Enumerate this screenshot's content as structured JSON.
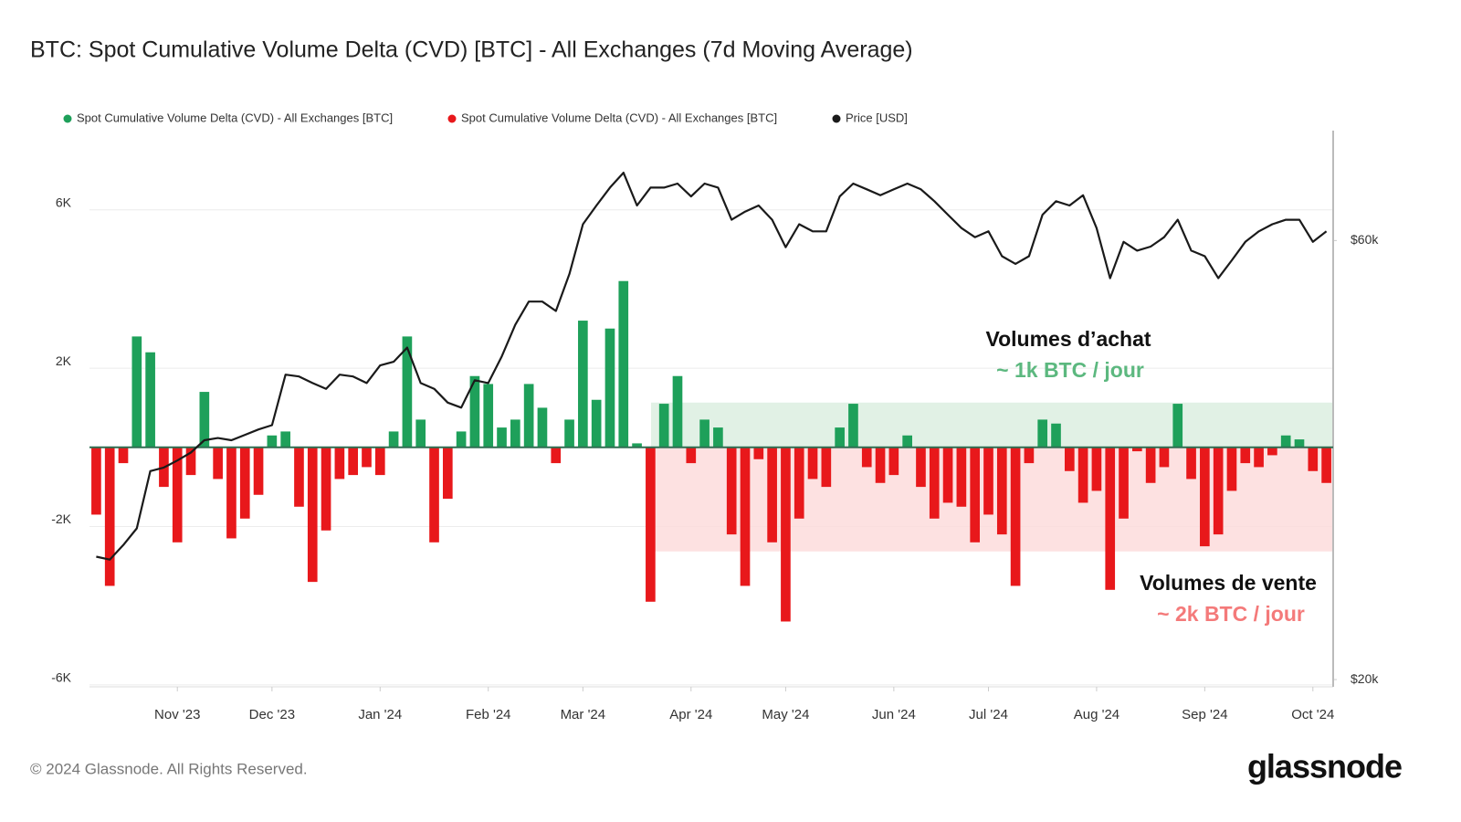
{
  "chart_data": {
    "type": "bar_line",
    "title": "BTC: Spot Cumulative Volume Delta (CVD) [BTC] - All Exchanges (7d Moving Average)",
    "categories": [
      null,
      null,
      null,
      null,
      null,
      null,
      "Nov '23",
      null,
      null,
      null,
      null,
      null,
      null,
      "Dec '23",
      null,
      null,
      null,
      null,
      null,
      null,
      null,
      "Jan '24",
      null,
      null,
      null,
      null,
      null,
      null,
      null,
      "Feb '24",
      null,
      null,
      null,
      null,
      null,
      null,
      "Mar '24",
      null,
      null,
      null,
      null,
      null,
      null,
      null,
      "Apr '24",
      null,
      null,
      null,
      null,
      null,
      null,
      "May '24",
      null,
      null,
      null,
      null,
      null,
      null,
      null,
      "Jun '24",
      null,
      null,
      null,
      null,
      null,
      null,
      "Jul '24",
      null,
      null,
      null,
      null,
      null,
      null,
      null,
      "Aug '24",
      null,
      null,
      null,
      null,
      null,
      null,
      null,
      "Sep '24",
      null,
      null,
      null,
      null,
      null,
      null,
      null,
      "Oct '24",
      null
    ],
    "series": [
      {
        "name": "Spot Cumulative Volume Delta (CVD) - All Exchanges [BTC]",
        "color": "#1ea05a",
        "kind": "bar",
        "values": [
          null,
          null,
          null,
          2800,
          2400,
          null,
          null,
          null,
          1400,
          null,
          null,
          null,
          null,
          300,
          400,
          null,
          null,
          null,
          null,
          null,
          null,
          null,
          400,
          2800,
          700,
          null,
          null,
          400,
          1800,
          1600,
          500,
          700,
          1600,
          1000,
          null,
          700,
          3200,
          1200,
          3000,
          4200,
          100,
          null,
          1100,
          1800,
          null,
          700,
          500,
          null,
          null,
          null,
          null,
          null,
          null,
          null,
          null,
          500,
          1100,
          null,
          null,
          null,
          300,
          null,
          null,
          null,
          null,
          null,
          null,
          null,
          null,
          null,
          700,
          600,
          null,
          null,
          null,
          null,
          null,
          null,
          null,
          null,
          1100,
          null,
          null,
          null,
          null,
          null,
          null,
          null,
          300,
          200,
          null,
          null
        ]
      },
      {
        "name": "Spot Cumulative Volume Delta (CVD) - All Exchanges [BTC]",
        "color": "#e8181b",
        "kind": "bar",
        "values": [
          -1700,
          -3500,
          -400,
          null,
          null,
          -1000,
          -2400,
          -700,
          null,
          -800,
          -2300,
          -1800,
          -1200,
          null,
          null,
          -1500,
          -3400,
          -2100,
          -800,
          -700,
          -500,
          -700,
          null,
          null,
          null,
          -2400,
          -1300,
          null,
          null,
          null,
          null,
          null,
          null,
          null,
          -400,
          null,
          null,
          null,
          null,
          null,
          null,
          -3900,
          null,
          null,
          -400,
          null,
          null,
          -2200,
          -3500,
          -300,
          -2400,
          -4400,
          -1800,
          -800,
          -1000,
          null,
          null,
          -500,
          -900,
          -700,
          null,
          -1000,
          -1800,
          -1400,
          -1500,
          -2400,
          -1700,
          -2200,
          -3500,
          -400,
          null,
          null,
          -600,
          -1400,
          -1100,
          -3600,
          -1800,
          -100,
          -900,
          -500,
          null,
          -800,
          -2500,
          -2200,
          -1100,
          -400,
          -500,
          -200,
          null,
          null,
          -600,
          -900
        ]
      },
      {
        "name": "Price [USD]",
        "color": "#1a1a1a",
        "kind": "line",
        "axis": "y2",
        "values": [
          27200,
          27000,
          28000,
          29200,
          33700,
          34000,
          34600,
          35300,
          36400,
          36600,
          36400,
          36900,
          37400,
          37800,
          42900,
          42700,
          42000,
          41400,
          42900,
          42700,
          42000,
          43900,
          44300,
          45900,
          42000,
          41400,
          40000,
          39500,
          42300,
          42000,
          44900,
          48600,
          51500,
          51500,
          50300,
          55200,
          62500,
          65500,
          68500,
          71100,
          65500,
          68500,
          68500,
          69200,
          67000,
          69200,
          68500,
          63200,
          64500,
          65500,
          63200,
          59000,
          62500,
          61400,
          61400,
          67000,
          69200,
          68200,
          67200,
          68200,
          69200,
          68200,
          66200,
          64000,
          61900,
          60500,
          61400,
          57700,
          56600,
          57700,
          64000,
          66200,
          65500,
          67200,
          61900,
          54600,
          59800,
          58500,
          59100,
          60500,
          63200,
          58500,
          57700,
          54600,
          57100,
          59800,
          61400,
          62500,
          63200,
          63200,
          59800,
          61400
        ]
      }
    ],
    "ylim": [
      -6050,
      8000
    ],
    "yticks": [
      {
        "value": -6000,
        "label": "-6K"
      },
      {
        "value": -2000,
        "label": "-2K"
      },
      {
        "value": 2000,
        "label": "2K"
      },
      {
        "value": 6000,
        "label": "6K"
      }
    ],
    "y2lim": [
      19640,
      79000
    ],
    "y2log": true,
    "y2ticks": [
      {
        "value": 20000,
        "label": "$20k"
      },
      {
        "value": 60000,
        "label": "$60k"
      }
    ],
    "grid": true,
    "bands": [
      {
        "range": [
          0,
          1130
        ],
        "color": "#dcefe1"
      },
      {
        "range": [
          -2630,
          0
        ],
        "color": "#fddcdc"
      }
    ],
    "annotations": [
      {
        "text": "Volumes d’achat",
        "color": "#111111"
      },
      {
        "text": "~ 1k BTC / jour",
        "color": "#5cb87f"
      },
      {
        "text": "Volumes de vente",
        "color": "#111111"
      },
      {
        "text": "~ 2k BTC / jour",
        "color": "#f47a7a"
      }
    ]
  },
  "footer": {
    "copyright": "© 2024 Glassnode. All Rights Reserved.",
    "logo": "glassnode"
  }
}
